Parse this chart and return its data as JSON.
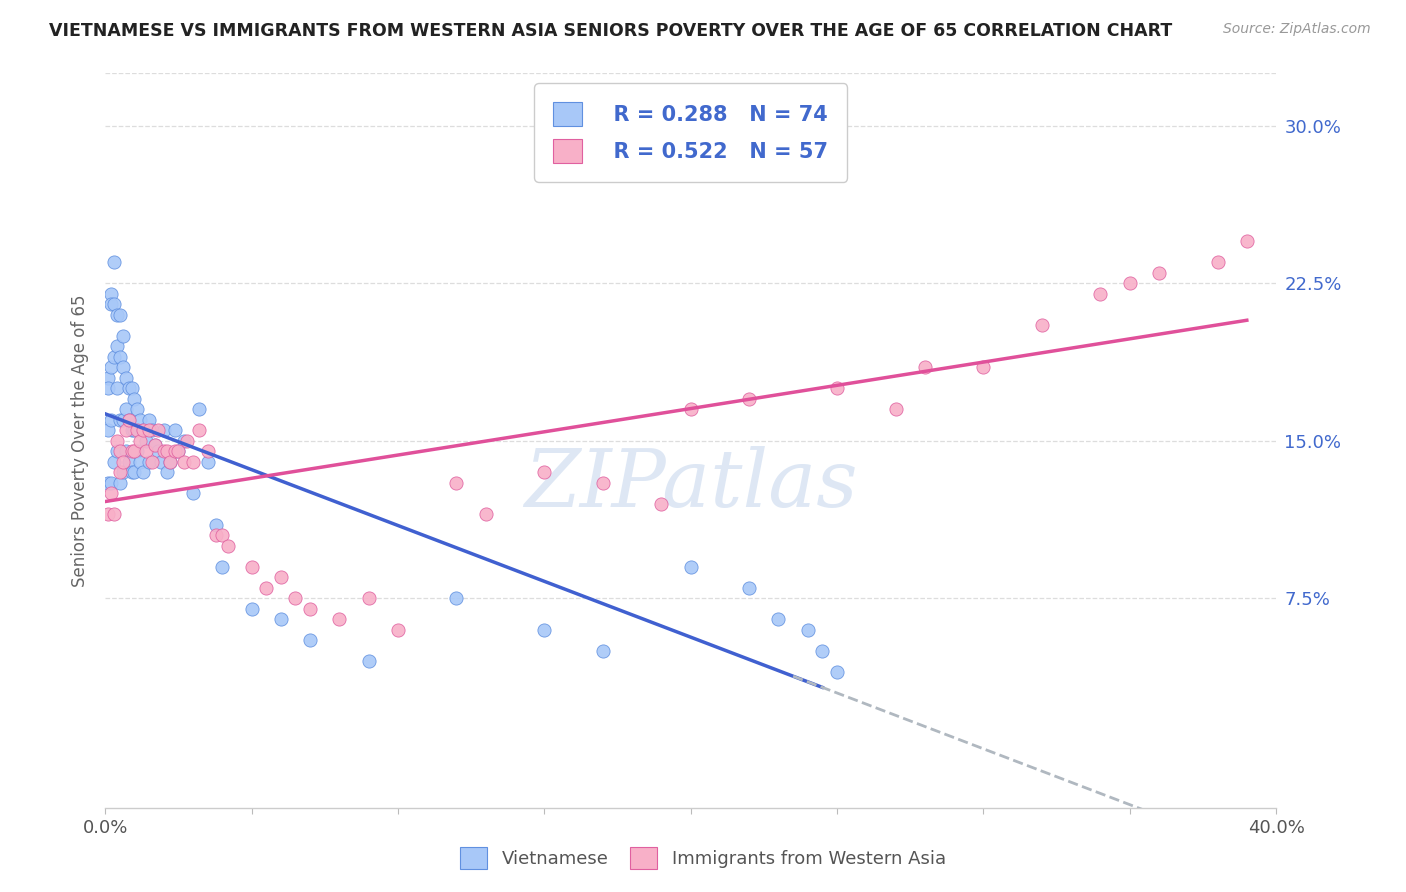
{
  "title": "VIETNAMESE VS IMMIGRANTS FROM WESTERN ASIA SENIORS POVERTY OVER THE AGE OF 65 CORRELATION CHART",
  "source": "Source: ZipAtlas.com",
  "ylabel": "Seniors Poverty Over the Age of 65",
  "xlim": [
    0.0,
    0.4
  ],
  "ylim": [
    -0.025,
    0.325
  ],
  "yticks": [
    0.075,
    0.15,
    0.225,
    0.3
  ],
  "ytick_labels": [
    "7.5%",
    "15.0%",
    "22.5%",
    "30.0%"
  ],
  "legend_R1": "R = 0.288",
  "legend_N1": "N = 74",
  "legend_R2": "R = 0.522",
  "legend_N2": "N = 57",
  "color_vietnamese": "#A8C8F8",
  "color_western_asia": "#F8B0C8",
  "color_edge_vietnamese": "#6090E0",
  "color_edge_western_asia": "#E060A0",
  "color_line_vietnamese": "#4060D0",
  "color_line_western_asia": "#E0509A",
  "color_dashed": "#B0B8C0",
  "watermark_color": "#C8D8EE",
  "viet_x": [
    0.001,
    0.001,
    0.001,
    0.001,
    0.002,
    0.002,
    0.002,
    0.002,
    0.002,
    0.003,
    0.003,
    0.003,
    0.003,
    0.004,
    0.004,
    0.004,
    0.004,
    0.005,
    0.005,
    0.005,
    0.005,
    0.006,
    0.006,
    0.006,
    0.006,
    0.007,
    0.007,
    0.007,
    0.008,
    0.008,
    0.008,
    0.009,
    0.009,
    0.009,
    0.01,
    0.01,
    0.01,
    0.011,
    0.011,
    0.012,
    0.012,
    0.013,
    0.013,
    0.014,
    0.015,
    0.015,
    0.016,
    0.017,
    0.018,
    0.019,
    0.02,
    0.021,
    0.022,
    0.024,
    0.025,
    0.027,
    0.03,
    0.032,
    0.035,
    0.038,
    0.04,
    0.05,
    0.06,
    0.07,
    0.09,
    0.12,
    0.15,
    0.17,
    0.2,
    0.22,
    0.23,
    0.24,
    0.245,
    0.25
  ],
  "viet_y": [
    0.18,
    0.175,
    0.155,
    0.13,
    0.22,
    0.215,
    0.185,
    0.16,
    0.13,
    0.235,
    0.215,
    0.19,
    0.14,
    0.21,
    0.195,
    0.175,
    0.145,
    0.21,
    0.19,
    0.16,
    0.13,
    0.2,
    0.185,
    0.16,
    0.135,
    0.18,
    0.165,
    0.145,
    0.175,
    0.16,
    0.14,
    0.175,
    0.155,
    0.135,
    0.17,
    0.155,
    0.135,
    0.165,
    0.145,
    0.16,
    0.14,
    0.155,
    0.135,
    0.15,
    0.16,
    0.14,
    0.155,
    0.148,
    0.145,
    0.14,
    0.155,
    0.135,
    0.14,
    0.155,
    0.145,
    0.15,
    0.125,
    0.165,
    0.14,
    0.11,
    0.09,
    0.07,
    0.065,
    0.055,
    0.045,
    0.075,
    0.06,
    0.05,
    0.09,
    0.08,
    0.065,
    0.06,
    0.05,
    0.04
  ],
  "wa_x": [
    0.001,
    0.002,
    0.003,
    0.004,
    0.005,
    0.005,
    0.006,
    0.007,
    0.008,
    0.009,
    0.01,
    0.011,
    0.012,
    0.013,
    0.014,
    0.015,
    0.016,
    0.017,
    0.018,
    0.02,
    0.021,
    0.022,
    0.024,
    0.025,
    0.027,
    0.028,
    0.03,
    0.032,
    0.035,
    0.038,
    0.04,
    0.042,
    0.05,
    0.055,
    0.06,
    0.065,
    0.07,
    0.08,
    0.09,
    0.1,
    0.12,
    0.13,
    0.15,
    0.17,
    0.19,
    0.2,
    0.22,
    0.25,
    0.27,
    0.28,
    0.3,
    0.32,
    0.34,
    0.35,
    0.36,
    0.38,
    0.39
  ],
  "wa_y": [
    0.115,
    0.125,
    0.115,
    0.15,
    0.135,
    0.145,
    0.14,
    0.155,
    0.16,
    0.145,
    0.145,
    0.155,
    0.15,
    0.155,
    0.145,
    0.155,
    0.14,
    0.148,
    0.155,
    0.145,
    0.145,
    0.14,
    0.145,
    0.145,
    0.14,
    0.15,
    0.14,
    0.155,
    0.145,
    0.105,
    0.105,
    0.1,
    0.09,
    0.08,
    0.085,
    0.075,
    0.07,
    0.065,
    0.075,
    0.06,
    0.13,
    0.115,
    0.135,
    0.13,
    0.12,
    0.165,
    0.17,
    0.175,
    0.165,
    0.185,
    0.185,
    0.205,
    0.22,
    0.225,
    0.23,
    0.235,
    0.245
  ]
}
